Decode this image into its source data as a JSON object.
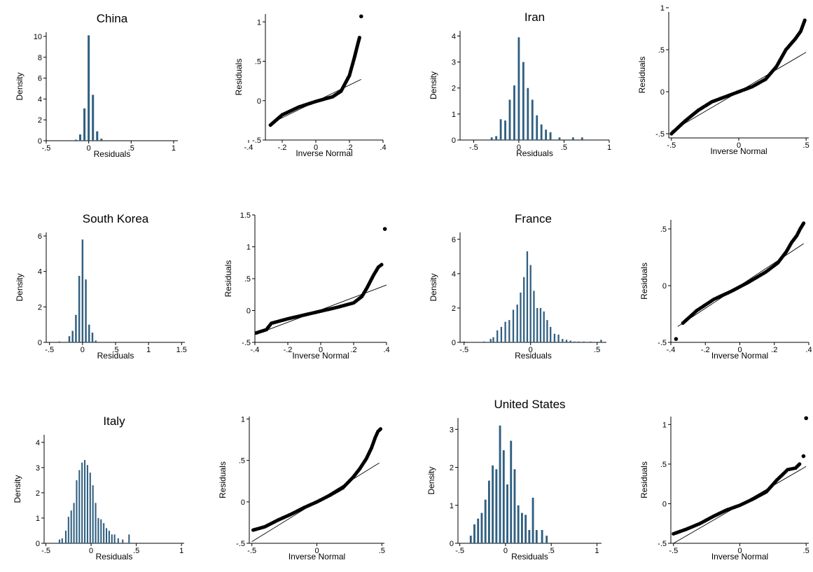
{
  "chart_data": [
    {
      "type": "bar",
      "kind": "histogram",
      "title": "China",
      "xlabel": "Residuals",
      "ylabel": "Density",
      "xlim": [
        -0.5,
        1.05
      ],
      "ylim": [
        0,
        10.4
      ],
      "xticks": [
        -0.5,
        0,
        0.5,
        1
      ],
      "xtick_labels": [
        "-.5",
        "0",
        ".5",
        "1"
      ],
      "yticks": [
        0,
        2,
        4,
        6,
        8,
        10
      ],
      "ytick_labels": [
        "0",
        "2",
        "4",
        "6",
        "8",
        "10"
      ],
      "bin_width": 0.025,
      "bins": [
        {
          "x": -0.15,
          "y": 0.1
        },
        {
          "x": -0.1,
          "y": 0.6
        },
        {
          "x": -0.05,
          "y": 3.1
        },
        {
          "x": 0.0,
          "y": 10.1
        },
        {
          "x": 0.05,
          "y": 4.4
        },
        {
          "x": 0.1,
          "y": 0.9
        },
        {
          "x": 0.15,
          "y": 0.2
        }
      ]
    },
    {
      "type": "scatter",
      "kind": "qnorm",
      "title": "",
      "xlabel": "Inverse Normal",
      "ylabel": "Residuals",
      "xlim": [
        -0.3,
        0.4
      ],
      "ylim": [
        -0.5,
        1.1
      ],
      "xticks": [
        -0.4,
        -0.2,
        0,
        0.2,
        0.4
      ],
      "xtick_labels": [
        "-.4",
        "-.2",
        "0",
        ".2",
        ".4"
      ],
      "yticks": [
        -0.5,
        0,
        0.5,
        1
      ],
      "ytick_labels": [
        "-.5",
        "0",
        ".5",
        "1"
      ],
      "line": [
        [
          -0.27,
          -0.29
        ],
        [
          0.27,
          0.27
        ]
      ],
      "curve": [
        [
          -0.27,
          -0.31
        ],
        [
          -0.2,
          -0.18
        ],
        [
          -0.1,
          -0.08
        ],
        [
          0.0,
          -0.01
        ],
        [
          0.1,
          0.05
        ],
        [
          0.15,
          0.12
        ],
        [
          0.2,
          0.32
        ],
        [
          0.23,
          0.55
        ],
        [
          0.25,
          0.72
        ],
        [
          0.26,
          0.8
        ]
      ],
      "extra": [
        [
          0.27,
          1.07
        ]
      ]
    },
    {
      "type": "bar",
      "kind": "histogram",
      "title": "Iran",
      "xlabel": "Residuals",
      "ylabel": "Density",
      "xlim": [
        -0.65,
        1.0
      ],
      "ylim": [
        0,
        4.2
      ],
      "xticks": [
        -0.5,
        0,
        0.5,
        1
      ],
      "xtick_labels": [
        "-.5",
        "0",
        ".5",
        "1"
      ],
      "yticks": [
        0,
        1,
        2,
        3,
        4
      ],
      "ytick_labels": [
        "0",
        "1",
        "2",
        "3",
        "4"
      ],
      "bin_width": 0.022,
      "bins": [
        {
          "x": -0.3,
          "y": 0.1
        },
        {
          "x": -0.25,
          "y": 0.15
        },
        {
          "x": -0.2,
          "y": 0.8
        },
        {
          "x": -0.15,
          "y": 0.75
        },
        {
          "x": -0.1,
          "y": 1.55
        },
        {
          "x": -0.05,
          "y": 2.1
        },
        {
          "x": 0.0,
          "y": 3.95
        },
        {
          "x": 0.05,
          "y": 3.0
        },
        {
          "x": 0.1,
          "y": 2.0
        },
        {
          "x": 0.15,
          "y": 1.55
        },
        {
          "x": 0.2,
          "y": 0.95
        },
        {
          "x": 0.25,
          "y": 0.6
        },
        {
          "x": 0.3,
          "y": 0.4
        },
        {
          "x": 0.35,
          "y": 0.3
        },
        {
          "x": 0.45,
          "y": 0.1
        },
        {
          "x": 0.6,
          "y": 0.1
        },
        {
          "x": 0.7,
          "y": 0.1
        }
      ]
    },
    {
      "type": "scatter",
      "kind": "qnorm",
      "title": "",
      "xlabel": "Inverse Normal",
      "ylabel": "Residuals",
      "xlim": [
        -0.52,
        0.52
      ],
      "ylim": [
        -0.55,
        0.95
      ],
      "xticks": [
        -0.5,
        0,
        0.5
      ],
      "xtick_labels": [
        "-.5",
        "0",
        ".5"
      ],
      "yticks": [
        -0.5,
        0,
        0.5,
        1
      ],
      "ytick_labels": [
        "-.5",
        "0",
        ".5",
        "1"
      ],
      "line": [
        [
          -0.5,
          -0.47
        ],
        [
          0.5,
          0.47
        ]
      ],
      "curve": [
        [
          -0.5,
          -0.5
        ],
        [
          -0.4,
          -0.35
        ],
        [
          -0.3,
          -0.22
        ],
        [
          -0.2,
          -0.12
        ],
        [
          -0.1,
          -0.06
        ],
        [
          0.0,
          0.0
        ],
        [
          0.1,
          0.06
        ],
        [
          0.2,
          0.15
        ],
        [
          0.28,
          0.3
        ],
        [
          0.35,
          0.5
        ],
        [
          0.42,
          0.63
        ],
        [
          0.46,
          0.72
        ],
        [
          0.49,
          0.85
        ]
      ],
      "extra": []
    },
    {
      "type": "bar",
      "kind": "histogram",
      "title": "South Korea",
      "xlabel": "Residuals",
      "ylabel": "Density",
      "xlim": [
        -0.55,
        1.55
      ],
      "ylim": [
        0,
        6.2
      ],
      "xticks": [
        -0.5,
        0,
        0.5,
        1,
        1.5
      ],
      "xtick_labels": [
        "-.5",
        "0",
        ".5",
        "1",
        "1.5"
      ],
      "yticks": [
        0,
        2,
        4,
        6
      ],
      "ytick_labels": [
        "0",
        "2",
        "4",
        "6"
      ],
      "bin_width": 0.026,
      "bins": [
        {
          "x": -0.35,
          "y": 0.05
        },
        {
          "x": -0.2,
          "y": 0.35
        },
        {
          "x": -0.15,
          "y": 0.65
        },
        {
          "x": -0.1,
          "y": 1.55
        },
        {
          "x": -0.05,
          "y": 3.75
        },
        {
          "x": 0.0,
          "y": 5.8
        },
        {
          "x": 0.05,
          "y": 3.55
        },
        {
          "x": 0.1,
          "y": 1.0
        },
        {
          "x": 0.15,
          "y": 0.55
        },
        {
          "x": 0.2,
          "y": 0.1
        }
      ]
    },
    {
      "type": "scatter",
      "kind": "qnorm",
      "title": "",
      "xlabel": "Inverse Normal",
      "ylabel": "Residuals",
      "xlim": [
        -0.4,
        0.4
      ],
      "ylim": [
        -0.5,
        1.5
      ],
      "xticks": [
        -0.4,
        -0.2,
        0,
        0.2,
        0.4
      ],
      "xtick_labels": [
        "-.4",
        "-.2",
        "0",
        ".2",
        ".4"
      ],
      "yticks": [
        -0.5,
        0,
        0.5,
        1,
        1.5
      ],
      "ytick_labels": [
        "-.5",
        "0",
        ".5",
        "1",
        "1.5"
      ],
      "line": [
        [
          -0.4,
          -0.38
        ],
        [
          0.4,
          0.4
        ]
      ],
      "curve": [
        [
          -0.39,
          -0.35
        ],
        [
          -0.33,
          -0.3
        ],
        [
          -0.3,
          -0.2
        ],
        [
          -0.2,
          -0.13
        ],
        [
          -0.1,
          -0.07
        ],
        [
          0.0,
          -0.01
        ],
        [
          0.1,
          0.05
        ],
        [
          0.2,
          0.12
        ],
        [
          0.25,
          0.22
        ],
        [
          0.28,
          0.35
        ],
        [
          0.32,
          0.55
        ],
        [
          0.35,
          0.68
        ],
        [
          0.37,
          0.72
        ]
      ],
      "extra": [
        [
          0.39,
          1.28
        ]
      ]
    },
    {
      "type": "bar",
      "kind": "histogram",
      "title": "France",
      "xlabel": "Residuals",
      "ylabel": "Density",
      "xlim": [
        -0.53,
        0.57
      ],
      "ylim": [
        0,
        6.4
      ],
      "xticks": [
        -0.5,
        0,
        0.5
      ],
      "xtick_labels": [
        "-.5",
        "0",
        ".5"
      ],
      "yticks": [
        0,
        2,
        4,
        6
      ],
      "ytick_labels": [
        "0",
        "2",
        "4",
        "6"
      ],
      "bin_width": 0.012,
      "bins": [
        {
          "x": -0.5,
          "y": 0.05
        },
        {
          "x": -0.45,
          "y": 0.03
        },
        {
          "x": -0.35,
          "y": 0.05
        },
        {
          "x": -0.3,
          "y": 0.2
        },
        {
          "x": -0.28,
          "y": 0.3
        },
        {
          "x": -0.25,
          "y": 0.7
        },
        {
          "x": -0.22,
          "y": 0.9
        },
        {
          "x": -0.19,
          "y": 1.2
        },
        {
          "x": -0.16,
          "y": 1.3
        },
        {
          "x": -0.13,
          "y": 1.9
        },
        {
          "x": -0.1,
          "y": 2.2
        },
        {
          "x": -0.075,
          "y": 2.9
        },
        {
          "x": -0.05,
          "y": 3.8
        },
        {
          "x": -0.025,
          "y": 5.3
        },
        {
          "x": 0.0,
          "y": 4.5
        },
        {
          "x": 0.025,
          "y": 3.0
        },
        {
          "x": 0.05,
          "y": 2.0
        },
        {
          "x": 0.075,
          "y": 2.0
        },
        {
          "x": 0.1,
          "y": 1.8
        },
        {
          "x": 0.125,
          "y": 1.3
        },
        {
          "x": 0.15,
          "y": 0.9
        },
        {
          "x": 0.18,
          "y": 0.5
        },
        {
          "x": 0.21,
          "y": 0.45
        },
        {
          "x": 0.24,
          "y": 0.2
        },
        {
          "x": 0.27,
          "y": 0.15
        },
        {
          "x": 0.3,
          "y": 0.1
        },
        {
          "x": 0.33,
          "y": 0.05
        },
        {
          "x": 0.36,
          "y": 0.05
        },
        {
          "x": 0.4,
          "y": 0.05
        },
        {
          "x": 0.45,
          "y": 0.05
        },
        {
          "x": 0.53,
          "y": 0.15
        }
      ]
    },
    {
      "type": "scatter",
      "kind": "qnorm",
      "title": "",
      "xlabel": "Inverse Normal",
      "ylabel": "Residuals",
      "xlim": [
        -0.4,
        0.4
      ],
      "ylim": [
        -0.5,
        0.58
      ],
      "xticks": [
        -0.4,
        -0.2,
        0,
        0.2,
        0.4
      ],
      "xtick_labels": [
        "-.4",
        "-.2",
        "0",
        ".2",
        ".4"
      ],
      "yticks": [
        -0.5,
        0,
        0.5
      ],
      "ytick_labels": [
        "-.5",
        "0",
        ".5"
      ],
      "line": [
        [
          -0.36,
          -0.36
        ],
        [
          0.37,
          0.37
        ]
      ],
      "curve": [
        [
          -0.33,
          -0.33
        ],
        [
          -0.25,
          -0.22
        ],
        [
          -0.15,
          -0.12
        ],
        [
          -0.05,
          -0.05
        ],
        [
          0.05,
          0.03
        ],
        [
          0.15,
          0.12
        ],
        [
          0.22,
          0.2
        ],
        [
          0.27,
          0.3
        ],
        [
          0.3,
          0.38
        ],
        [
          0.33,
          0.44
        ],
        [
          0.35,
          0.5
        ],
        [
          0.37,
          0.55
        ]
      ],
      "extra": [
        [
          -0.37,
          -0.47
        ]
      ]
    },
    {
      "type": "bar",
      "kind": "histogram",
      "title": "Italy",
      "xlabel": "Residuals",
      "ylabel": "Density",
      "xlim": [
        -0.52,
        1.03
      ],
      "ylim": [
        0,
        4.3
      ],
      "xticks": [
        -0.5,
        0,
        0.5,
        1
      ],
      "xtick_labels": [
        "-.5",
        "0",
        ".5",
        "1"
      ],
      "yticks": [
        0,
        1,
        2,
        3,
        4
      ],
      "ytick_labels": [
        "0",
        "1",
        "2",
        "3",
        "4"
      ],
      "bin_width": 0.016,
      "bins": [
        {
          "x": -0.35,
          "y": 0.15
        },
        {
          "x": -0.32,
          "y": 0.2
        },
        {
          "x": -0.28,
          "y": 0.5
        },
        {
          "x": -0.25,
          "y": 1.05
        },
        {
          "x": -0.22,
          "y": 1.3
        },
        {
          "x": -0.19,
          "y": 1.6
        },
        {
          "x": -0.16,
          "y": 2.5
        },
        {
          "x": -0.13,
          "y": 2.9
        },
        {
          "x": -0.1,
          "y": 3.2
        },
        {
          "x": -0.07,
          "y": 3.3
        },
        {
          "x": -0.04,
          "y": 3.1
        },
        {
          "x": -0.01,
          "y": 2.8
        },
        {
          "x": 0.02,
          "y": 2.3
        },
        {
          "x": 0.05,
          "y": 1.6
        },
        {
          "x": 0.08,
          "y": 1.0
        },
        {
          "x": 0.11,
          "y": 0.95
        },
        {
          "x": 0.14,
          "y": 0.8
        },
        {
          "x": 0.17,
          "y": 0.6
        },
        {
          "x": 0.2,
          "y": 0.5
        },
        {
          "x": 0.23,
          "y": 0.35
        },
        {
          "x": 0.26,
          "y": 0.35
        },
        {
          "x": 0.3,
          "y": 0.2
        },
        {
          "x": 0.35,
          "y": 0.15
        },
        {
          "x": 0.42,
          "y": 0.35
        }
      ]
    },
    {
      "type": "scatter",
      "kind": "qnorm",
      "title": "",
      "xlabel": "Inverse Normal",
      "ylabel": "Residuals",
      "xlim": [
        -0.52,
        0.52
      ],
      "ylim": [
        -0.5,
        1.03
      ],
      "xticks": [
        -0.5,
        0,
        0.5
      ],
      "xtick_labels": [
        "-.5",
        "0",
        ".5"
      ],
      "yticks": [
        -0.5,
        0,
        0.5,
        1
      ],
      "ytick_labels": [
        "-.5",
        "0",
        ".5",
        "1"
      ],
      "line": [
        [
          -0.5,
          -0.48
        ],
        [
          0.48,
          0.47
        ]
      ],
      "curve": [
        [
          -0.49,
          -0.34
        ],
        [
          -0.4,
          -0.3
        ],
        [
          -0.3,
          -0.22
        ],
        [
          -0.2,
          -0.15
        ],
        [
          -0.1,
          -0.07
        ],
        [
          0.0,
          0.0
        ],
        [
          0.1,
          0.08
        ],
        [
          0.2,
          0.17
        ],
        [
          0.28,
          0.3
        ],
        [
          0.33,
          0.4
        ],
        [
          0.38,
          0.52
        ],
        [
          0.42,
          0.65
        ],
        [
          0.45,
          0.78
        ],
        [
          0.47,
          0.85
        ],
        [
          0.49,
          0.88
        ]
      ],
      "extra": []
    },
    {
      "type": "bar",
      "kind": "histogram",
      "title": "United States",
      "xlabel": "Residuals",
      "ylabel": "Density",
      "xlim": [
        -0.52,
        1.05
      ],
      "ylim": [
        0,
        3.3
      ],
      "xticks": [
        -0.5,
        0,
        0.5,
        1
      ],
      "xtick_labels": [
        "-.5",
        "0",
        ".5",
        "1"
      ],
      "yticks": [
        0,
        1,
        2,
        3
      ],
      "ytick_labels": [
        "0",
        "1",
        "2",
        "3"
      ],
      "bin_width": 0.022,
      "bins": [
        {
          "x": -0.38,
          "y": 0.2
        },
        {
          "x": -0.34,
          "y": 0.5
        },
        {
          "x": -0.3,
          "y": 0.65
        },
        {
          "x": -0.26,
          "y": 0.8
        },
        {
          "x": -0.22,
          "y": 1.15
        },
        {
          "x": -0.18,
          "y": 1.65
        },
        {
          "x": -0.14,
          "y": 2.05
        },
        {
          "x": -0.1,
          "y": 1.95
        },
        {
          "x": -0.06,
          "y": 3.1
        },
        {
          "x": -0.02,
          "y": 2.45
        },
        {
          "x": 0.02,
          "y": 1.55
        },
        {
          "x": 0.06,
          "y": 2.7
        },
        {
          "x": 0.1,
          "y": 1.95
        },
        {
          "x": 0.14,
          "y": 1.0
        },
        {
          "x": 0.18,
          "y": 0.8
        },
        {
          "x": 0.22,
          "y": 0.75
        },
        {
          "x": 0.26,
          "y": 0.35
        },
        {
          "x": 0.3,
          "y": 1.2
        },
        {
          "x": 0.34,
          "y": 0.35
        },
        {
          "x": 0.4,
          "y": 0.35
        },
        {
          "x": 0.45,
          "y": 0.2
        }
      ]
    },
    {
      "type": "scatter",
      "kind": "qnorm",
      "title": "",
      "xlabel": "Inverse Normal",
      "ylabel": "Residuals",
      "xlim": [
        -0.52,
        0.52
      ],
      "ylim": [
        -0.5,
        1.1
      ],
      "xticks": [
        -0.5,
        0,
        0.5
      ],
      "xtick_labels": [
        "-.5",
        "0",
        ".5"
      ],
      "yticks": [
        -0.5,
        0,
        0.5,
        1
      ],
      "ytick_labels": [
        "-.5",
        "0",
        ".5",
        "1"
      ],
      "line": [
        [
          -0.5,
          -0.5
        ],
        [
          0.5,
          0.47
        ]
      ],
      "curve": [
        [
          -0.5,
          -0.38
        ],
        [
          -0.4,
          -0.32
        ],
        [
          -0.3,
          -0.25
        ],
        [
          -0.2,
          -0.16
        ],
        [
          -0.1,
          -0.08
        ],
        [
          0.0,
          -0.02
        ],
        [
          0.1,
          0.06
        ],
        [
          0.2,
          0.15
        ],
        [
          0.28,
          0.3
        ],
        [
          0.33,
          0.38
        ],
        [
          0.36,
          0.43
        ],
        [
          0.42,
          0.45
        ],
        [
          0.45,
          0.5
        ]
      ],
      "extra": [
        [
          0.48,
          0.6
        ],
        [
          0.5,
          1.08
        ]
      ]
    }
  ]
}
